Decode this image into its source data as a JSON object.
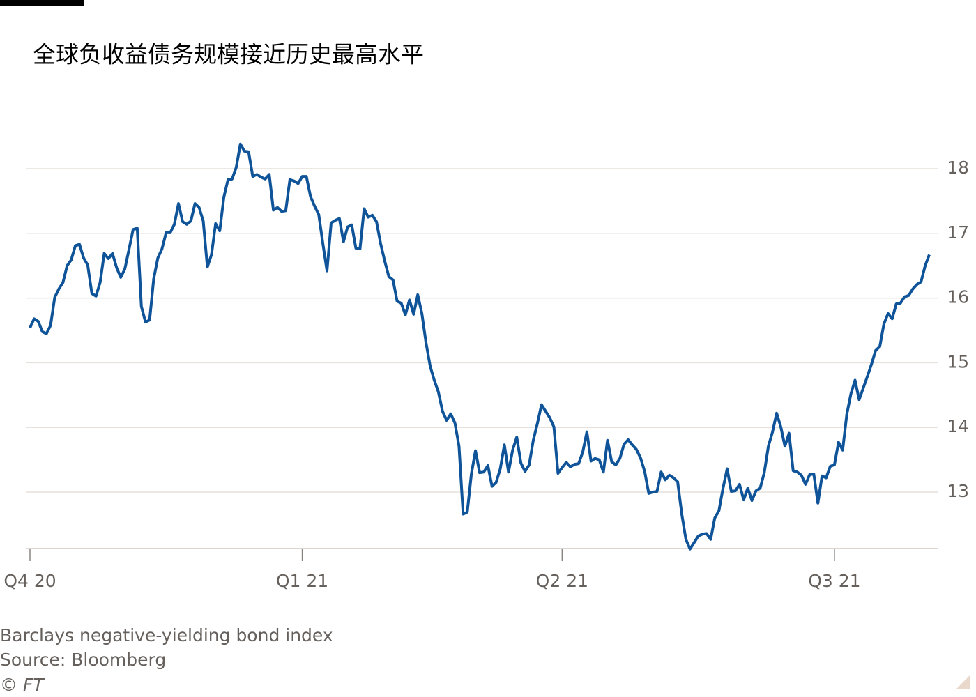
{
  "chart_data": {
    "type": "line",
    "title": "全球负收益债务规模接近历史最高水平",
    "note": "Barclays negative-yielding bond index",
    "source": "Source: Bloomberg",
    "credit": "© FT",
    "categories": [
      "Q4 20",
      null,
      null,
      null,
      null,
      null,
      null,
      null,
      null,
      null,
      null,
      null,
      null,
      null,
      null,
      null,
      null,
      null,
      null,
      null,
      null,
      null,
      null,
      null,
      null,
      null,
      null,
      null,
      null,
      null,
      null,
      null,
      null,
      null,
      null,
      null,
      null,
      null,
      null,
      null,
      null,
      null,
      null,
      null,
      null,
      null,
      null,
      null,
      null,
      null,
      null,
      null,
      null,
      null,
      null,
      null,
      null,
      null,
      null,
      null,
      null,
      null,
      null,
      null,
      null,
      null,
      "Q1 21",
      null,
      null,
      null,
      null,
      null,
      null,
      null,
      null,
      null,
      null,
      null,
      null,
      null,
      null,
      null,
      null,
      null,
      null,
      null,
      null,
      null,
      null,
      null,
      null,
      null,
      null,
      null,
      null,
      null,
      null,
      null,
      null,
      null,
      null,
      null,
      null,
      null,
      null,
      null,
      null,
      null,
      null,
      null,
      null,
      null,
      null,
      null,
      null,
      null,
      null,
      null,
      null,
      null,
      null,
      null,
      null,
      null,
      null,
      null,
      null,
      null,
      null,
      "Q2 21",
      null,
      null,
      null,
      null,
      null,
      null,
      null,
      null,
      null,
      null,
      null,
      null,
      null,
      null,
      null,
      null,
      null,
      null,
      null,
      null,
      null,
      null,
      null,
      null,
      null,
      null,
      null,
      null,
      null,
      null,
      null,
      null,
      null,
      null,
      null,
      null,
      null,
      null,
      null,
      null,
      null,
      null,
      null,
      null,
      null,
      null,
      null,
      null,
      null,
      null,
      null,
      null,
      null,
      null,
      null,
      null,
      null,
      null,
      null,
      null,
      null,
      null,
      null,
      null,
      null,
      "Q3 21",
      null,
      null,
      null,
      null,
      null,
      null,
      null,
      null,
      null,
      null,
      null,
      null,
      null,
      null,
      null,
      null,
      null,
      null,
      null,
      null,
      null,
      null,
      null
    ],
    "series": [
      {
        "color": "#0f5499",
        "values": [
          15.54,
          15.68,
          15.64,
          15.48,
          15.45,
          15.58,
          16.01,
          16.14,
          16.24,
          16.5,
          16.59,
          16.81,
          16.83,
          16.62,
          16.51,
          16.07,
          16.03,
          16.24,
          16.69,
          16.61,
          16.69,
          16.47,
          16.32,
          16.45,
          16.75,
          17.06,
          17.08,
          15.87,
          15.63,
          15.66,
          16.3,
          16.62,
          16.76,
          17.01,
          17.01,
          17.14,
          17.46,
          17.18,
          17.14,
          17.19,
          17.46,
          17.4,
          17.19,
          16.48,
          16.67,
          17.15,
          17.04,
          17.56,
          17.83,
          17.84,
          18.02,
          18.38,
          18.27,
          18.26,
          17.88,
          17.91,
          17.87,
          17.84,
          17.91,
          17.36,
          17.4,
          17.34,
          17.35,
          17.83,
          17.81,
          17.77,
          17.88,
          17.88,
          17.57,
          17.42,
          17.29,
          16.84,
          16.42,
          17.16,
          17.2,
          17.23,
          16.87,
          17.1,
          17.13,
          16.77,
          16.76,
          17.38,
          17.25,
          17.28,
          17.18,
          16.84,
          16.57,
          16.33,
          16.28,
          15.95,
          15.92,
          15.74,
          15.97,
          15.75,
          16.05,
          15.76,
          15.31,
          14.95,
          14.73,
          14.55,
          14.25,
          14.11,
          14.21,
          14.07,
          13.71,
          12.66,
          12.69,
          13.28,
          13.64,
          13.3,
          13.31,
          13.41,
          13.09,
          13.15,
          13.36,
          13.73,
          13.31,
          13.65,
          13.85,
          13.45,
          13.32,
          13.42,
          13.8,
          14.06,
          14.35,
          14.25,
          14.15,
          14.01,
          13.29,
          13.38,
          13.46,
          13.39,
          13.43,
          13.44,
          13.62,
          13.93,
          13.48,
          13.52,
          13.5,
          13.31,
          13.8,
          13.47,
          13.42,
          13.52,
          13.74,
          13.81,
          13.73,
          13.66,
          13.53,
          13.32,
          12.98,
          13.0,
          13.01,
          13.31,
          13.19,
          13.26,
          13.22,
          13.16,
          12.66,
          12.27,
          12.12,
          12.22,
          12.32,
          12.35,
          12.36,
          12.27,
          12.6,
          12.71,
          13.06,
          13.36,
          13.01,
          13.02,
          13.12,
          12.88,
          13.06,
          12.87,
          13.02,
          13.06,
          13.3,
          13.71,
          13.93,
          14.22,
          14.01,
          13.71,
          13.91,
          13.33,
          13.31,
          13.26,
          13.12,
          13.27,
          13.28,
          12.83,
          13.25,
          13.22,
          13.4,
          13.42,
          13.77,
          13.65,
          14.2,
          14.52,
          14.73,
          14.43,
          14.61,
          14.79,
          14.98,
          15.19,
          15.25,
          15.6,
          15.76,
          15.68,
          15.91,
          15.92,
          16.02,
          16.04,
          16.14,
          16.21,
          16.25,
          16.5,
          16.67
        ]
      }
    ],
    "ylim": [
      12.1,
      18.45
    ],
    "yticks": [
      13,
      14,
      15,
      16,
      17,
      18
    ],
    "y_axis_side": "right",
    "grid": true
  }
}
